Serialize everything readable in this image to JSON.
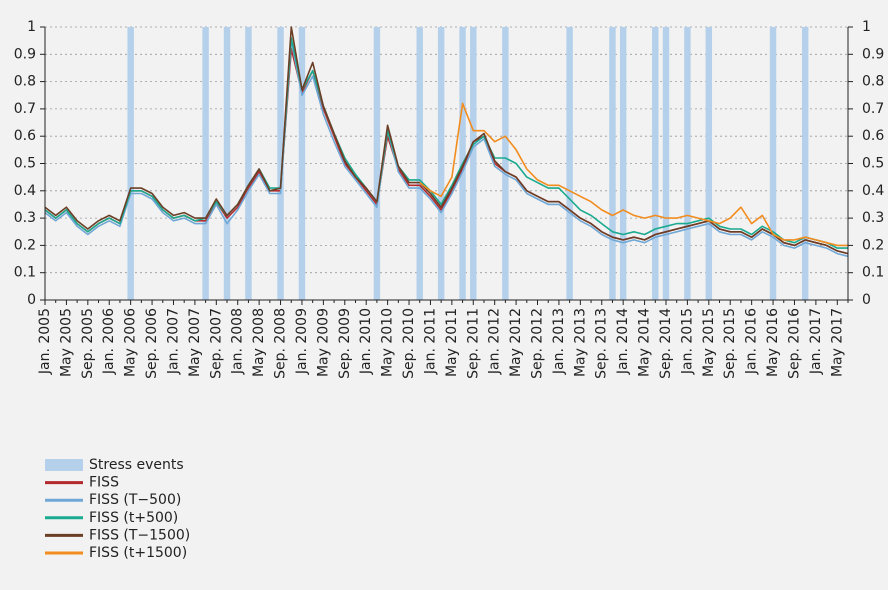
{
  "chart_data": {
    "type": "line",
    "categories": [
      "Jan. 2005",
      null,
      "May 2005",
      null,
      "Sep. 2005",
      null,
      "Jan. 2006",
      null,
      "May 2006",
      null,
      "Sep. 2006",
      null,
      "Jan. 2007",
      null,
      "May 2007",
      null,
      "Sep. 2007",
      null,
      "Jan. 2008",
      null,
      "May 2008",
      null,
      "Sep. 2008",
      null,
      "Jan. 2009",
      null,
      "May 2009",
      null,
      "Sep. 2009",
      null,
      "Jan. 2010",
      null,
      "May 2010",
      null,
      "Sep. 2010",
      null,
      "Jan. 2011",
      null,
      "May 2011",
      null,
      "Sep. 2011",
      null,
      "Jan. 2012",
      null,
      "May 2012",
      null,
      "Sep. 2012",
      null,
      "Jan. 2013",
      null,
      "May 2013",
      null,
      "Sep. 2013",
      null,
      "Jan. 2014",
      null,
      "May 2014",
      null,
      "Sep. 2014",
      null,
      "Jan. 2015",
      null,
      "May 2015",
      null,
      "Sep. 2015",
      null,
      "Jan. 2016",
      null,
      "May 2016",
      null,
      "Sep. 2016",
      null,
      "Jan. 2017",
      null,
      "May 2017",
      null
    ],
    "series": [
      {
        "name": "Stress events",
        "type": "bar",
        "color": "#b4d0ea",
        "values": [
          null,
          null,
          null,
          null,
          null,
          null,
          null,
          null,
          1,
          null,
          null,
          null,
          null,
          null,
          null,
          1,
          null,
          1,
          null,
          1,
          null,
          null,
          1,
          null,
          1,
          null,
          null,
          null,
          null,
          null,
          null,
          1,
          null,
          null,
          null,
          1,
          null,
          1,
          null,
          1,
          1,
          null,
          null,
          1,
          null,
          null,
          null,
          null,
          null,
          1,
          null,
          null,
          null,
          1,
          1,
          null,
          null,
          1,
          1,
          null,
          1,
          null,
          1,
          null,
          null,
          null,
          null,
          null,
          1,
          null,
          null,
          1,
          null,
          null,
          null,
          null
        ]
      },
      {
        "name": "FISS",
        "color": "#b22a2e",
        "values": [
          0.33,
          0.3,
          0.33,
          0.28,
          0.25,
          0.28,
          0.3,
          0.28,
          0.4,
          0.4,
          0.38,
          0.33,
          0.3,
          0.31,
          0.29,
          0.29,
          0.36,
          0.3,
          0.34,
          0.41,
          0.47,
          0.4,
          0.4,
          0.92,
          0.76,
          0.84,
          0.7,
          0.6,
          0.5,
          0.45,
          0.4,
          0.35,
          0.6,
          0.48,
          0.42,
          0.42,
          0.38,
          0.33,
          0.4,
          0.48,
          0.58,
          0.6,
          0.5,
          0.47,
          0.45,
          0.4,
          0.38,
          0.36,
          0.36,
          0.33,
          0.3,
          0.28,
          0.25,
          0.23,
          0.22,
          0.23,
          0.22,
          0.24,
          0.25,
          0.26,
          0.27,
          0.28,
          0.29,
          0.26,
          0.25,
          0.25,
          0.23,
          0.26,
          0.24,
          0.21,
          0.2,
          0.22,
          0.21,
          0.2,
          0.18,
          0.17
        ]
      },
      {
        "name": "FISS (T−500)",
        "color": "#6fa8d6",
        "values": [
          0.32,
          0.29,
          0.32,
          0.27,
          0.24,
          0.27,
          0.29,
          0.27,
          0.39,
          0.39,
          0.37,
          0.32,
          0.29,
          0.3,
          0.28,
          0.28,
          0.35,
          0.28,
          0.33,
          0.4,
          0.46,
          0.39,
          0.39,
          0.95,
          0.75,
          0.82,
          0.68,
          0.58,
          0.49,
          0.44,
          0.39,
          0.34,
          0.62,
          0.47,
          0.41,
          0.41,
          0.37,
          0.32,
          0.39,
          0.47,
          0.56,
          0.59,
          0.49,
          0.46,
          0.44,
          0.39,
          0.37,
          0.35,
          0.35,
          0.32,
          0.29,
          0.27,
          0.24,
          0.22,
          0.21,
          0.22,
          0.21,
          0.23,
          0.24,
          0.25,
          0.26,
          0.27,
          0.28,
          0.25,
          0.24,
          0.24,
          0.22,
          0.25,
          0.23,
          0.2,
          0.19,
          0.21,
          0.2,
          0.19,
          0.17,
          0.16
        ]
      },
      {
        "name": "FISS (t+500)",
        "color": "#1aaa8f",
        "values": [
          0.33,
          0.3,
          0.33,
          0.28,
          0.25,
          0.28,
          0.3,
          0.28,
          0.4,
          0.4,
          0.38,
          0.33,
          0.3,
          0.31,
          0.29,
          0.3,
          0.36,
          0.31,
          0.35,
          0.42,
          0.48,
          0.41,
          0.41,
          0.96,
          0.77,
          0.84,
          0.71,
          0.61,
          0.52,
          0.46,
          0.41,
          0.36,
          0.62,
          0.49,
          0.44,
          0.44,
          0.4,
          0.35,
          0.42,
          0.5,
          0.57,
          0.6,
          0.52,
          0.52,
          0.5,
          0.45,
          0.43,
          0.41,
          0.41,
          0.37,
          0.33,
          0.31,
          0.28,
          0.25,
          0.24,
          0.25,
          0.24,
          0.26,
          0.27,
          0.28,
          0.28,
          0.29,
          0.3,
          0.27,
          0.26,
          0.26,
          0.24,
          0.27,
          0.25,
          0.22,
          0.21,
          0.23,
          0.22,
          0.21,
          0.19,
          0.19
        ]
      },
      {
        "name": "FISS (T−1500)",
        "color": "#6b3e26",
        "values": [
          0.34,
          0.31,
          0.34,
          0.29,
          0.26,
          0.29,
          0.31,
          0.29,
          0.41,
          0.41,
          0.39,
          0.34,
          0.31,
          0.32,
          0.3,
          0.3,
          0.37,
          0.31,
          0.35,
          0.42,
          0.48,
          0.4,
          0.41,
          1.0,
          0.77,
          0.87,
          0.71,
          0.61,
          0.51,
          0.45,
          0.41,
          0.36,
          0.64,
          0.49,
          0.43,
          0.43,
          0.39,
          0.34,
          0.41,
          0.49,
          0.58,
          0.61,
          0.51,
          0.47,
          0.45,
          0.4,
          0.38,
          0.36,
          0.36,
          0.33,
          0.3,
          0.28,
          0.25,
          0.23,
          0.22,
          0.23,
          0.22,
          0.24,
          0.25,
          0.26,
          0.27,
          0.28,
          0.29,
          0.26,
          0.25,
          0.25,
          0.23,
          0.26,
          0.24,
          0.21,
          0.2,
          0.22,
          0.21,
          0.2,
          0.18,
          0.17
        ]
      },
      {
        "name": "FISS (t+1500)",
        "color": "#f28c1e",
        "values": [
          null,
          null,
          null,
          null,
          null,
          null,
          null,
          null,
          null,
          null,
          null,
          null,
          null,
          null,
          null,
          null,
          null,
          null,
          null,
          null,
          null,
          null,
          null,
          null,
          null,
          null,
          null,
          null,
          null,
          null,
          null,
          null,
          null,
          null,
          null,
          0.43,
          0.4,
          0.38,
          0.45,
          0.72,
          0.62,
          0.62,
          0.58,
          0.6,
          0.55,
          0.48,
          0.44,
          0.42,
          0.42,
          0.4,
          0.38,
          0.36,
          0.33,
          0.31,
          0.33,
          0.31,
          0.3,
          0.31,
          0.3,
          0.3,
          0.31,
          0.3,
          0.29,
          0.28,
          0.3,
          0.34,
          0.28,
          0.31,
          0.24,
          0.22,
          0.22,
          0.23,
          0.22,
          0.21,
          0.2,
          0.2
        ]
      }
    ],
    "ylim": [
      0,
      1
    ],
    "yticks": [
      0,
      0.1,
      0.2,
      0.3,
      0.4,
      0.5,
      0.6,
      0.7,
      0.8,
      0.9,
      1
    ],
    "y2lim": [
      0,
      1
    ],
    "y2ticks": [
      0,
      0.1,
      0.2,
      0.3,
      0.4,
      0.5,
      0.6,
      0.7,
      0.8,
      0.9,
      1
    ],
    "grid": true,
    "legend": "bottom-left"
  }
}
